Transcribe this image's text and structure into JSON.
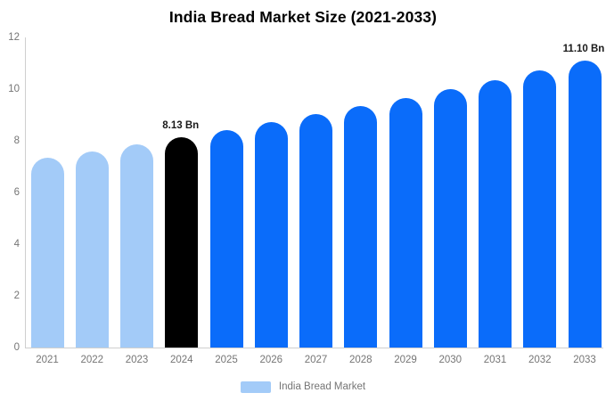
{
  "title": "India Bread Market Size (2021-2033)",
  "colors": {
    "axis_line": "#cfcfcf",
    "tick_text": "#757575",
    "title_text": "#000000",
    "annotation_text": "#1a1a1a",
    "light_blue": "#a3cbf8",
    "blue": "#0a6cfa",
    "black": "#000000",
    "background": "#ffffff"
  },
  "chart_data": {
    "type": "bar",
    "title": "India Bread Market Size (2021-2033)",
    "xlabel": "",
    "ylabel": "",
    "unit": "Bn",
    "categories": [
      "2021",
      "2022",
      "2023",
      "2024",
      "2025",
      "2026",
      "2027",
      "2028",
      "2029",
      "2030",
      "2031",
      "2032",
      "2033"
    ],
    "values": [
      7.33,
      7.59,
      7.85,
      8.13,
      8.42,
      8.71,
      9.02,
      9.33,
      9.66,
      10.0,
      10.35,
      10.72,
      11.1
    ],
    "bar_colors": [
      "#a3cbf8",
      "#a3cbf8",
      "#a3cbf8",
      "#000000",
      "#0a6cfa",
      "#0a6cfa",
      "#0a6cfa",
      "#0a6cfa",
      "#0a6cfa",
      "#0a6cfa",
      "#0a6cfa",
      "#0a6cfa",
      "#0a6cfa"
    ],
    "ylim": [
      0,
      12
    ],
    "yticks": [
      0,
      2,
      4,
      6,
      8,
      10,
      12
    ],
    "grid": false,
    "annotations": [
      {
        "category": "2024",
        "text": "8.13 Bn"
      },
      {
        "category": "2033",
        "text": "11.10 Bn"
      }
    ],
    "legend": {
      "position": "bottom",
      "label": "India Bread Market",
      "color": "#a3cbf8"
    }
  }
}
